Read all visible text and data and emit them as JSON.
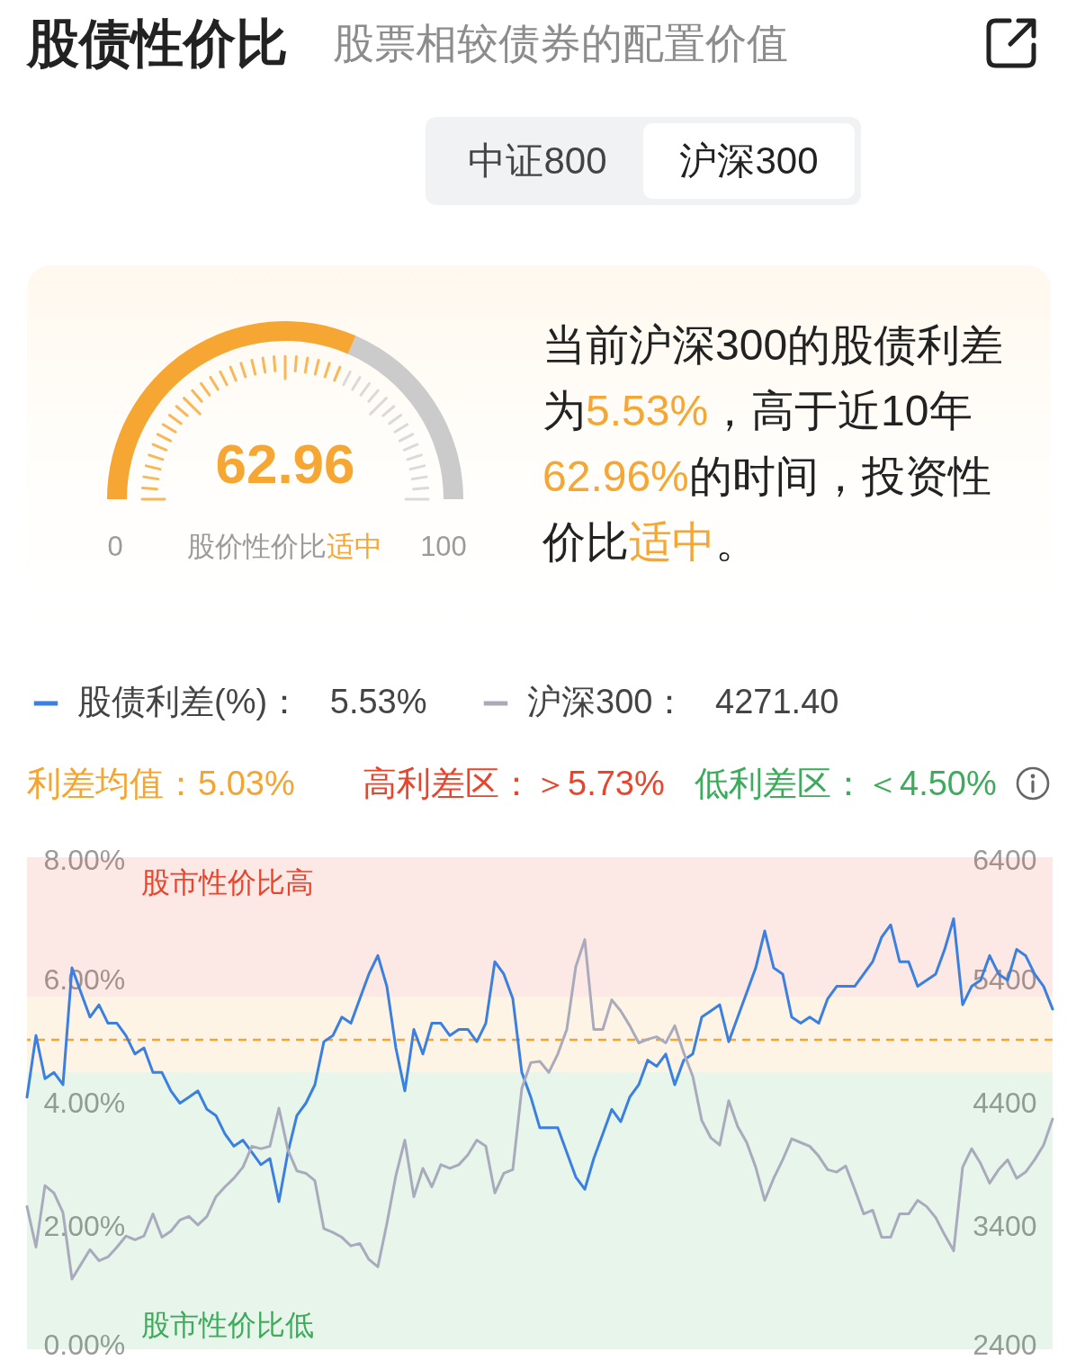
{
  "chart_data": [
    {
      "type": "other",
      "title": "股债性价比",
      "subtitle": "股票相较债券的配置价值",
      "annotations": [
        "中证800",
        "沪深300"
      ]
    },
    {
      "type": "pie",
      "categories": [
        null
      ],
      "values": [
        62.96
      ],
      "colors": [
        "#f6a633"
      ],
      "value_labels": [
        "62.96"
      ],
      "annotations": [
        "0",
        "100",
        "股价性价比",
        "适中"
      ]
    },
    {
      "type": "other",
      "annotations": [
        "当前沪深300的股债利差",
        "为",
        "5.53%",
        "，高于近10年",
        "62.96%",
        "的时间，投资性",
        "价比",
        "适中",
        "。"
      ],
      "colors": [
        "#222222",
        "#222222",
        "#f6a633",
        "#222222",
        "#f6a633",
        "#222222",
        "#222222",
        "#f6a633",
        "#222222"
      ]
    },
    {
      "type": "line",
      "categories": [
        null,
        null,
        null,
        null,
        null,
        null,
        null,
        null,
        null,
        null,
        null,
        null,
        null,
        null,
        null,
        null,
        null,
        null,
        null,
        null,
        null,
        null,
        null,
        null,
        null,
        null,
        null,
        null,
        null,
        null,
        null,
        null,
        null,
        null,
        null,
        null,
        null,
        null,
        null,
        null,
        null,
        null,
        null,
        null,
        null,
        null,
        null,
        null,
        null,
        null,
        null,
        null,
        null,
        null,
        null,
        null,
        null,
        null,
        null,
        null,
        null,
        null,
        null,
        null,
        null,
        null,
        null,
        null,
        null,
        null,
        null,
        null,
        null,
        null,
        null,
        null,
        null,
        null,
        null,
        null,
        null,
        null,
        null,
        null,
        null,
        null,
        null,
        null,
        null,
        null,
        null,
        null,
        null,
        null,
        null,
        null,
        null,
        null,
        null,
        null,
        null,
        null,
        null,
        null,
        null,
        null,
        null,
        null,
        null,
        null,
        null,
        null,
        null,
        null,
        null
      ],
      "series": [
        {
          "name": "股债利差(%)：",
          "color": "#3b7fe0",
          "values": [
            4.1,
            5.1,
            4.4,
            4.5,
            4.3,
            6.2,
            5.8,
            5.4,
            5.6,
            5.3,
            5.3,
            5.1,
            4.8,
            4.9,
            4.5,
            4.5,
            4.2,
            4.0,
            4.1,
            4.2,
            3.9,
            3.8,
            3.5,
            3.3,
            3.4,
            3.2,
            3.0,
            3.1,
            2.4,
            3.2,
            3.8,
            4.0,
            4.3,
            5.0,
            5.1,
            5.4,
            5.3,
            5.7,
            6.1,
            6.4,
            5.9,
            4.9,
            4.2,
            5.2,
            4.8,
            5.3,
            5.3,
            5.1,
            5.2,
            5.2,
            5.0,
            5.3,
            6.3,
            6.1,
            5.7,
            4.5,
            4.1,
            3.6,
            3.6,
            3.6,
            3.2,
            2.8,
            2.6,
            3.1,
            3.5,
            3.9,
            3.7,
            4.1,
            4.3,
            4.7,
            4.6,
            4.8,
            4.3,
            4.7,
            4.8,
            5.4,
            5.5,
            5.6,
            5.0,
            5.4,
            5.8,
            6.2,
            6.8,
            6.2,
            6.1,
            5.4,
            5.3,
            5.4,
            5.3,
            5.7,
            5.9,
            5.9,
            5.9,
            6.1,
            6.3,
            6.7,
            6.9,
            6.3,
            6.3,
            5.9,
            6.0,
            6.1,
            6.5,
            7.0,
            5.6,
            5.9,
            6.0,
            6.4,
            6.1,
            6.0,
            6.5,
            6.4,
            6.1,
            5.9,
            5.53
          ]
        },
        {
          "name": "沪深300：",
          "color": "#a9abbc",
          "axis": "y2",
          "values": [
            3560,
            3230,
            3730,
            3670,
            3510,
            2970,
            3090,
            3210,
            3120,
            3150,
            3230,
            3320,
            3290,
            3320,
            3500,
            3310,
            3360,
            3450,
            3480,
            3410,
            3480,
            3640,
            3720,
            3790,
            3880,
            4050,
            4030,
            4050,
            4360,
            4020,
            3850,
            3830,
            3770,
            3380,
            3350,
            3310,
            3240,
            3260,
            3130,
            3070,
            3420,
            3810,
            4100,
            3640,
            3870,
            3720,
            3900,
            3870,
            3900,
            3980,
            4100,
            4050,
            3670,
            3830,
            3860,
            4520,
            4730,
            4740,
            4650,
            4800,
            5000,
            5510,
            5730,
            5000,
            5000,
            5240,
            5150,
            5030,
            4890,
            4920,
            4940,
            4890,
            5030,
            4810,
            4620,
            4260,
            4120,
            4060,
            4420,
            4210,
            4080,
            3880,
            3610,
            3790,
            3940,
            4110,
            4080,
            4050,
            3970,
            3860,
            3840,
            3890,
            3700,
            3500,
            3530,
            3310,
            3310,
            3500,
            3500,
            3610,
            3560,
            3470,
            3330,
            3200,
            3880,
            4030,
            3910,
            3750,
            3860,
            3940,
            3790,
            3840,
            3940,
            4060,
            4271.4
          ]
        }
      ],
      "ylim": [
        0,
        8
      ],
      "yticks": [
        {
          "value": 0,
          "label": "0.00%"
        },
        {
          "value": 2,
          "label": "2.00%"
        },
        {
          "value": 4,
          "label": "4.00%"
        },
        {
          "value": 6,
          "label": "6.00%"
        },
        {
          "value": 8,
          "label": "8.00%"
        }
      ],
      "y2lim": [
        2400,
        6400
      ],
      "y2ticks": [
        2400,
        3400,
        4400,
        5400,
        6400
      ],
      "bands": [
        {
          "axis": "y",
          "from": 5.73,
          "to": 8,
          "label": "高利差区：＞5.73%",
          "color": "#e8452c"
        },
        {
          "axis": "y",
          "from": 4.5,
          "to": 5.73,
          "color": "#f5a331"
        },
        {
          "axis": "y",
          "from": 0,
          "to": 4.5,
          "label": "低利差区：＜4.50%",
          "color": "#3dab5b"
        }
      ],
      "ref_lines": [
        {
          "axis": "y",
          "value": 5.03,
          "label": "利差均值：5.03%",
          "color": "#f5a331",
          "line_style": "dashed"
        }
      ],
      "annotations": [
        "5.53%",
        "4271.40",
        "股市性价比高",
        "股市性价比低"
      ],
      "legend": "top left"
    }
  ]
}
